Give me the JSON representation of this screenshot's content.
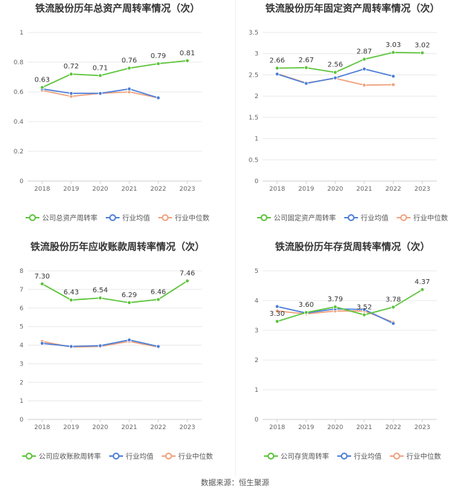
{
  "footer": "数据来源：恒生聚源",
  "colors": {
    "company": "#5cc43a",
    "avg": "#4e7fd8",
    "median": "#f0a27e"
  },
  "chart_data": [
    {
      "type": "line",
      "title": "铁流股份历年总资产周转率情况（次）",
      "categories": [
        "2018",
        "2019",
        "2020",
        "2021",
        "2022",
        "2023"
      ],
      "ylim": [
        0,
        1
      ],
      "yticks": [
        "0",
        "0.2",
        "0.4",
        "0.6",
        "0.8",
        "1"
      ],
      "ytick_values": [
        0,
        0.2,
        0.4,
        0.6,
        0.8,
        1
      ],
      "series": [
        {
          "name": "公司总资产周转率",
          "values": [
            0.63,
            0.72,
            0.71,
            0.76,
            0.79,
            0.81
          ],
          "labels": [
            "0.63",
            "0.72",
            "0.71",
            "0.76",
            "0.79",
            "0.81"
          ]
        },
        {
          "name": "行业均值",
          "values": [
            0.62,
            0.59,
            0.59,
            0.62,
            0.56,
            null
          ]
        },
        {
          "name": "行业中位数",
          "values": [
            0.61,
            0.57,
            0.59,
            0.6,
            0.56,
            null
          ]
        }
      ]
    },
    {
      "type": "line",
      "title": "铁流股份历年固定资产周转率情况（次）",
      "categories": [
        "2018",
        "2019",
        "2020",
        "2021",
        "2022",
        "2023"
      ],
      "ylim": [
        0,
        3.5
      ],
      "yticks": [
        "0",
        "0.5",
        "1",
        "1.5",
        "2",
        "2.5",
        "3",
        "3.5"
      ],
      "ytick_values": [
        0,
        0.5,
        1,
        1.5,
        2,
        2.5,
        3,
        3.5
      ],
      "series": [
        {
          "name": "公司固定资产周转率",
          "values": [
            2.66,
            2.67,
            2.56,
            2.87,
            3.03,
            3.02
          ],
          "labels": [
            "2.66",
            "2.67",
            "2.56",
            "2.87",
            "3.03",
            "3.02"
          ]
        },
        {
          "name": "行业均值",
          "values": [
            2.52,
            2.3,
            2.43,
            2.64,
            2.47,
            null
          ]
        },
        {
          "name": "行业中位数",
          "values": [
            2.53,
            2.31,
            2.42,
            2.26,
            2.27,
            null
          ]
        }
      ]
    },
    {
      "type": "line",
      "title": "铁流股份历年应收账款周转率情况（次）",
      "categories": [
        "2018",
        "2019",
        "2020",
        "2021",
        "2022",
        "2023"
      ],
      "ylim": [
        0,
        8
      ],
      "yticks": [
        "0",
        "1",
        "2",
        "3",
        "4",
        "5",
        "6",
        "7",
        "8"
      ],
      "ytick_values": [
        0,
        1,
        2,
        3,
        4,
        5,
        6,
        7,
        8
      ],
      "series": [
        {
          "name": "公司应收账款周转率",
          "values": [
            7.3,
            6.43,
            6.54,
            6.29,
            6.46,
            7.46
          ],
          "labels": [
            "7.30",
            "6.43",
            "6.54",
            "6.29",
            "6.46",
            "7.46"
          ]
        },
        {
          "name": "行业均值",
          "values": [
            4.1,
            3.93,
            3.97,
            4.28,
            3.93,
            null
          ]
        },
        {
          "name": "行业中位数",
          "values": [
            4.2,
            3.9,
            3.93,
            4.2,
            3.9,
            null
          ]
        }
      ]
    },
    {
      "type": "line",
      "title": "铁流股份历年存货周转率情况（次）",
      "categories": [
        "2018",
        "2019",
        "2020",
        "2021",
        "2022",
        "2023"
      ],
      "ylim": [
        0,
        5
      ],
      "yticks": [
        "0",
        "1",
        "2",
        "3",
        "4",
        "5"
      ],
      "ytick_values": [
        0,
        1,
        2,
        3,
        4,
        5
      ],
      "series": [
        {
          "name": "公司存货周转率",
          "values": [
            3.3,
            3.6,
            3.79,
            3.52,
            3.78,
            4.37
          ],
          "labels": [
            "3.30",
            "3.60",
            "3.79",
            "3.52",
            "3.78",
            "4.37"
          ]
        },
        {
          "name": "行业均值",
          "values": [
            3.8,
            3.58,
            3.72,
            3.7,
            3.23,
            null
          ]
        },
        {
          "name": "行业中位数",
          "values": [
            3.65,
            3.55,
            3.65,
            3.65,
            3.27,
            null
          ]
        }
      ]
    }
  ]
}
